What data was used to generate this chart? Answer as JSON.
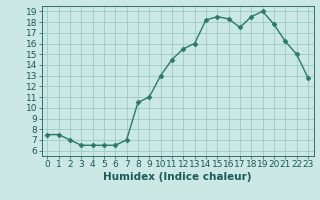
{
  "x": [
    0,
    1,
    2,
    3,
    4,
    5,
    6,
    7,
    8,
    9,
    10,
    11,
    12,
    13,
    14,
    15,
    16,
    17,
    18,
    19,
    20,
    21,
    22,
    23
  ],
  "y": [
    7.5,
    7.5,
    7.0,
    6.5,
    6.5,
    6.5,
    6.5,
    7.0,
    10.5,
    11.0,
    13.0,
    14.5,
    15.5,
    16.0,
    18.2,
    18.5,
    18.3,
    17.5,
    18.5,
    19.0,
    17.8,
    16.2,
    15.0,
    12.8
  ],
  "line_color": "#2a7a6a",
  "marker": "D",
  "marker_size": 2.5,
  "bg_color": "#cce8e4",
  "grid_color": "#99ccc8",
  "xlabel": "Humidex (Indice chaleur)",
  "xlim": [
    -0.5,
    23.5
  ],
  "ylim": [
    5.5,
    19.5
  ],
  "yticks": [
    6,
    7,
    8,
    9,
    10,
    11,
    12,
    13,
    14,
    15,
    16,
    17,
    18,
    19
  ],
  "xtick_labels": [
    "0",
    "1",
    "2",
    "3",
    "4",
    "5",
    "6",
    "7",
    "8",
    "9",
    "10",
    "11",
    "12",
    "13",
    "14",
    "15",
    "16",
    "17",
    "18",
    "19",
    "20",
    "21",
    "22",
    "23"
  ],
  "font_color": "#1a5a5a",
  "font_size": 6.5,
  "xlabel_fontsize": 7.5,
  "label_fontweight": "bold",
  "linewidth": 1.0
}
